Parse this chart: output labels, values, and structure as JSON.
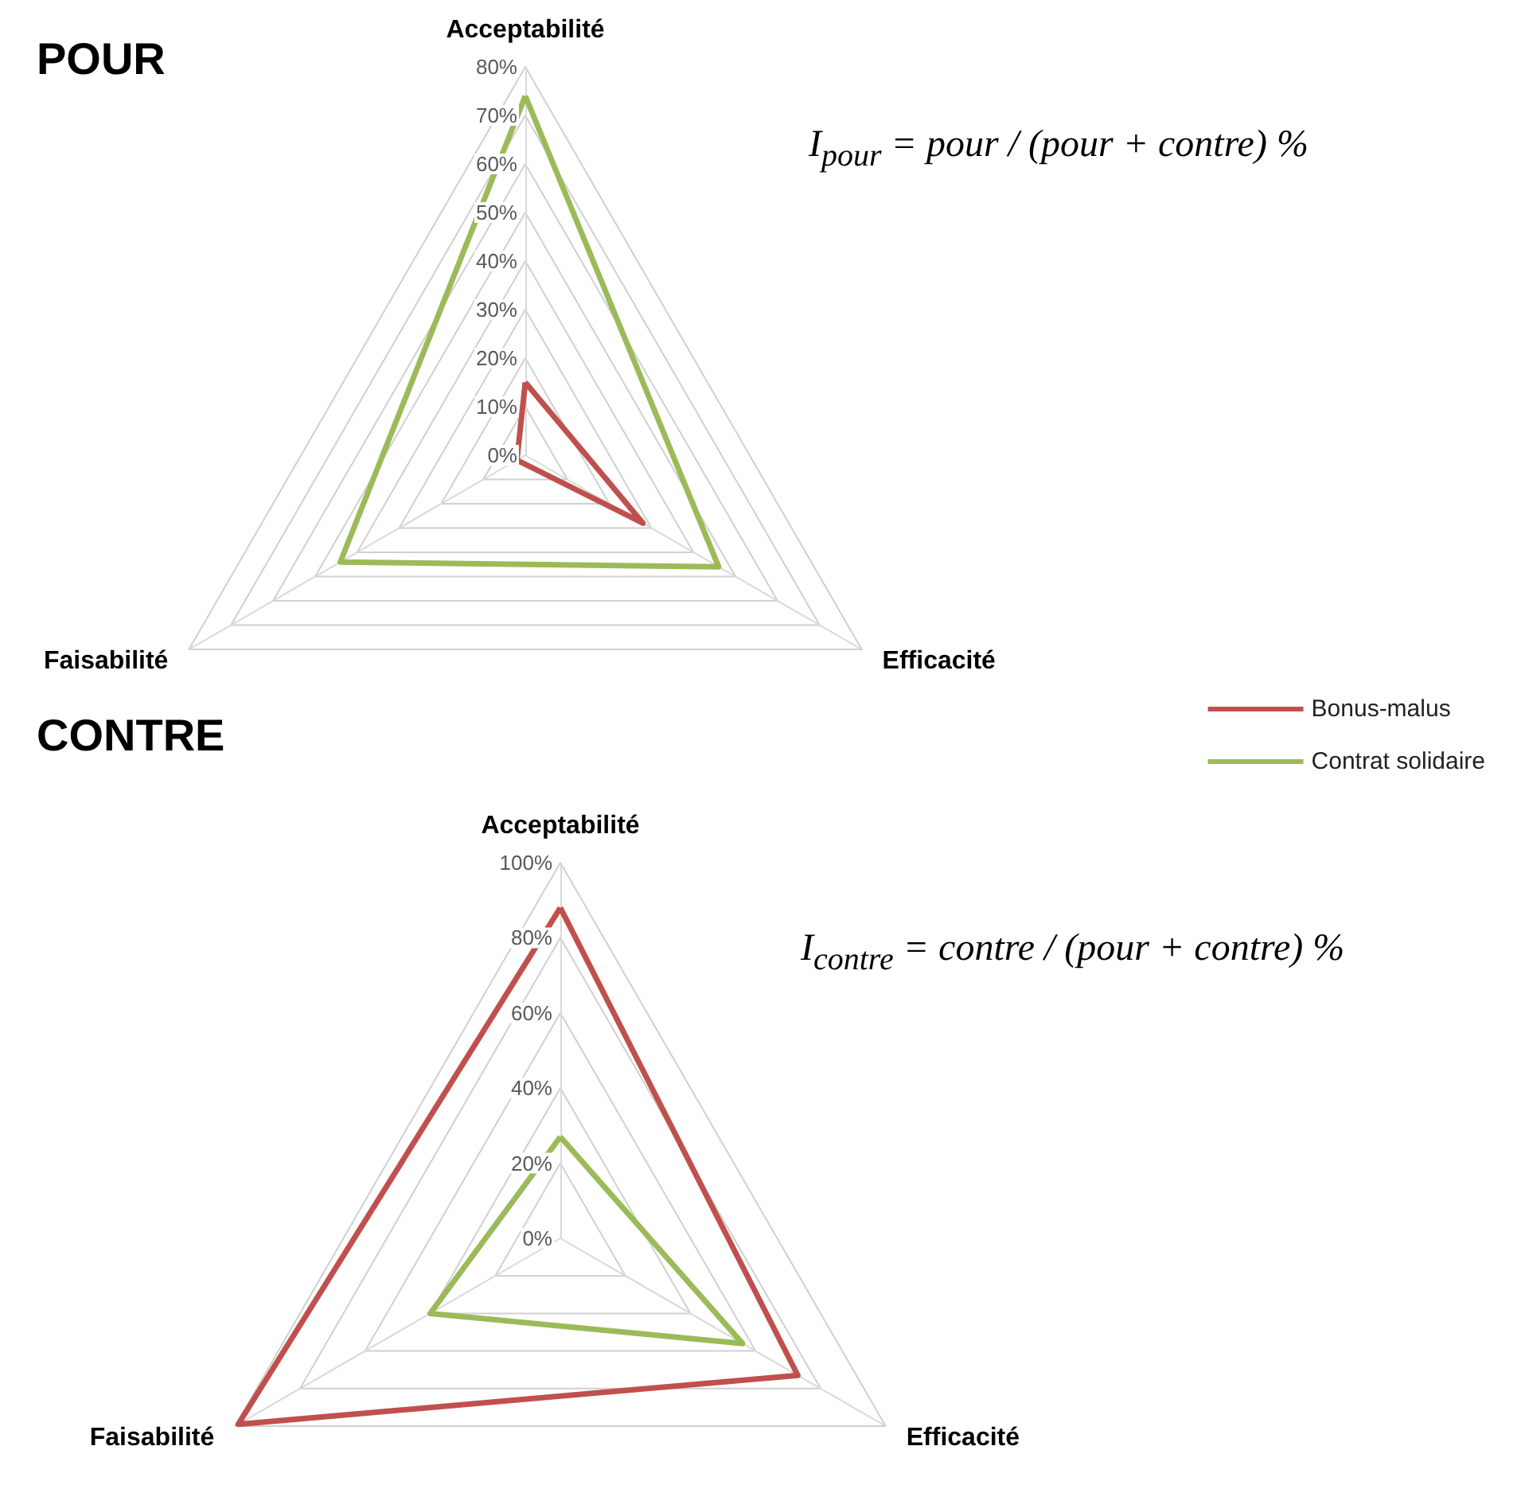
{
  "chart_data": [
    {
      "type": "radar",
      "title": "POUR",
      "categories": [
        "Acceptabilité",
        "Efficacité",
        "Faisabilité"
      ],
      "ylim": [
        0,
        80
      ],
      "yticks": [
        {
          "value": 0,
          "label": "0%"
        },
        {
          "value": 10,
          "label": "10%"
        },
        {
          "value": 20,
          "label": "20%"
        },
        {
          "value": 30,
          "label": "30%"
        },
        {
          "value": 40,
          "label": "40%"
        },
        {
          "value": 50,
          "label": "50%"
        },
        {
          "value": 60,
          "label": "60%"
        },
        {
          "value": 70,
          "label": "70%"
        },
        {
          "value": 80,
          "label": "80%"
        }
      ],
      "series": [
        {
          "color": "#c0504d",
          "values": [
            15,
            28,
            2
          ]
        },
        {
          "color": "#9bbb59",
          "values": [
            74,
            46,
            44
          ]
        }
      ],
      "legend": false,
      "annotations": [
        "I$_{pour}$ = pour / (pour + contre) %"
      ]
    },
    {
      "type": "radar",
      "title": "CONTRE",
      "categories": [
        "Acceptabilité",
        "Efficacité",
        "Faisabilité"
      ],
      "ylim": [
        0,
        100
      ],
      "yticks": [
        {
          "value": 0,
          "label": "0%"
        },
        {
          "value": 20,
          "label": "20%"
        },
        {
          "value": 40,
          "label": "40%"
        },
        {
          "value": 60,
          "label": "60%"
        },
        {
          "value": 80,
          "label": "80%"
        },
        {
          "value": 100,
          "label": "100%"
        }
      ],
      "series": [
        {
          "name": "Bonus-malus",
          "color": "#c0504d",
          "values": [
            88,
            73,
            99
          ]
        },
        {
          "name": "Contrat solidaire",
          "color": "#9bbb59",
          "values": [
            27,
            56,
            40
          ]
        }
      ],
      "legend": "top right",
      "annotations": [
        "I$_{contre}$ = contre / (pour + contre) %"
      ]
    }
  ]
}
